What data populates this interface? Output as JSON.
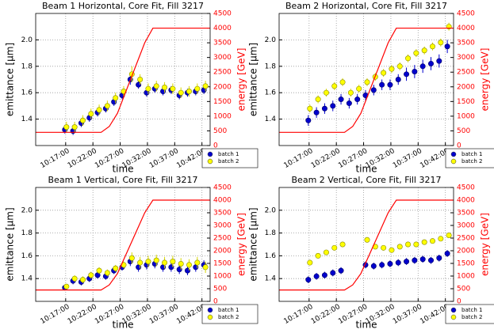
{
  "chart_data": [
    {
      "type": "errorbar",
      "title": "Beam 1 Horizontal, Core Fit, Fill 3217",
      "xlabel": "time",
      "ylabel": "emittance [μm]",
      "y2label": "energy [GeV]",
      "x": [
        17,
        18.5,
        20,
        21.5,
        23,
        24.5,
        26,
        27.5,
        29,
        30.5,
        32,
        33.5,
        35,
        36.5,
        38,
        39.5,
        41,
        42.5
      ],
      "xlim": [
        11.5,
        43.5
      ],
      "xticks": [
        {
          "value": 17,
          "label": "10:17:00"
        },
        {
          "value": 22,
          "label": "10:22:00"
        },
        {
          "value": 27,
          "label": "10:27:00"
        },
        {
          "value": 32,
          "label": "10:32:00"
        },
        {
          "value": 37,
          "label": "10:37:00"
        },
        {
          "value": 42,
          "label": "10:42:00"
        }
      ],
      "ylim": [
        1.2,
        2.2
      ],
      "yticks": [
        1.4,
        1.6,
        1.8,
        {
          "value": 2,
          "label": "2.0"
        }
      ],
      "y2lim": [
        0,
        4500
      ],
      "y2ticks": [
        0,
        500,
        1000,
        1500,
        2000,
        2500,
        3000,
        3500,
        4000,
        4500
      ],
      "grid": true,
      "legend": "lower right",
      "series": [
        {
          "name": "batch 1",
          "color": "#0000cc",
          "values": [
            1.32,
            1.31,
            1.37,
            1.41,
            1.45,
            1.48,
            1.53,
            1.58,
            1.7,
            1.66,
            1.6,
            1.63,
            1.61,
            1.62,
            1.58,
            1.6,
            1.61,
            1.62
          ],
          "errors": [
            0.03,
            0.03,
            0.03,
            0.03,
            0.03,
            0.03,
            0.03,
            0.03,
            0.04,
            0.03,
            0.03,
            0.03,
            0.03,
            0.03,
            0.03,
            0.03,
            0.03,
            0.03
          ]
        },
        {
          "name": "batch 2",
          "color": "#ffff00",
          "values": [
            1.34,
            1.34,
            1.39,
            1.44,
            1.47,
            1.5,
            1.56,
            1.61,
            1.74,
            1.7,
            1.63,
            1.65,
            1.64,
            1.63,
            1.6,
            1.61,
            1.63,
            1.65
          ],
          "errors": [
            0.04,
            0.04,
            0.04,
            0.04,
            0.04,
            0.04,
            0.04,
            0.04,
            0.06,
            0.04,
            0.04,
            0.04,
            0.04,
            0.04,
            0.04,
            0.04,
            0.04,
            0.04
          ]
        },
        {
          "color": "#ff0000",
          "axis": "y2",
          "x": [
            11.5,
            23.5,
            25,
            26.5,
            31.5,
            33,
            43.5
          ],
          "values": [
            450,
            450,
            650,
            1100,
            3500,
            4000,
            4000
          ]
        }
      ]
    },
    {
      "type": "errorbar",
      "title": "Beam 2 Horizontal, Core Fit, Fill 3217",
      "xlabel": "time",
      "ylabel": "emittance [μm]",
      "y2label": "energy [GeV]",
      "x": [
        17,
        18.5,
        20,
        21.5,
        23,
        24.5,
        26,
        27.5,
        29,
        30.5,
        32,
        33.5,
        35,
        36.5,
        38,
        39.5,
        41,
        42.5
      ],
      "xlim": [
        11.5,
        43.5
      ],
      "xticks": [
        {
          "value": 17,
          "label": "10:17:00"
        },
        {
          "value": 22,
          "label": "10:22:00"
        },
        {
          "value": 27,
          "label": "10:27:00"
        },
        {
          "value": 32,
          "label": "10:32:00"
        },
        {
          "value": 37,
          "label": "10:37:00"
        },
        {
          "value": 42,
          "label": "10:42:00"
        }
      ],
      "ylim": [
        1.2,
        2.2
      ],
      "yticks": [
        1.4,
        1.6,
        1.8,
        {
          "value": 2,
          "label": "2.0"
        }
      ],
      "y2lim": [
        0,
        4500
      ],
      "y2ticks": [
        0,
        500,
        1000,
        1500,
        2000,
        2500,
        3000,
        3500,
        4000,
        4500
      ],
      "grid": true,
      "legend": "lower right",
      "series": [
        {
          "name": "batch 1",
          "color": "#0000cc",
          "values": [
            1.39,
            1.45,
            1.48,
            1.5,
            1.55,
            1.52,
            1.55,
            1.58,
            1.62,
            1.66,
            1.66,
            1.7,
            1.74,
            1.76,
            1.8,
            1.82,
            1.84,
            1.95
          ],
          "errors": [
            0.04,
            0.04,
            0.04,
            0.04,
            0.04,
            0.04,
            0.04,
            0.04,
            0.04,
            0.04,
            0.04,
            0.04,
            0.05,
            0.05,
            0.05,
            0.05,
            0.05,
            0.05
          ]
        },
        {
          "name": "batch 2",
          "color": "#ffff00",
          "values": [
            1.48,
            1.55,
            1.6,
            1.65,
            1.68,
            1.6,
            1.63,
            1.68,
            1.72,
            1.75,
            1.78,
            1.8,
            1.86,
            1.9,
            1.92,
            1.95,
            1.98,
            2.1
          ],
          "errors": [
            0.03,
            0.03,
            0.03,
            0.03,
            0.03,
            0.03,
            0.03,
            0.03,
            0.03,
            0.03,
            0.03,
            0.03,
            0.03,
            0.03,
            0.03,
            0.03,
            0.03,
            0.03
          ]
        },
        {
          "color": "#ff0000",
          "axis": "y2",
          "x": [
            11.5,
            23.5,
            25,
            26.5,
            31.5,
            33,
            43.5
          ],
          "values": [
            450,
            450,
            650,
            1100,
            3500,
            4000,
            4000
          ]
        }
      ]
    },
    {
      "type": "errorbar",
      "title": "Beam 1 Vertical, Core Fit, Fill 3217",
      "xlabel": "time",
      "ylabel": "emittance [μm]",
      "y2label": "energy [GeV]",
      "x": [
        17,
        18.5,
        20,
        21.5,
        23,
        24.5,
        26,
        27.5,
        29,
        30.5,
        32,
        33.5,
        35,
        36.5,
        38,
        39.5,
        41,
        42.5
      ],
      "xlim": [
        11.5,
        43.5
      ],
      "xticks": [
        {
          "value": 17,
          "label": "10:17:00"
        },
        {
          "value": 22,
          "label": "10:22:00"
        },
        {
          "value": 27,
          "label": "10:27:00"
        },
        {
          "value": 32,
          "label": "10:32:00"
        },
        {
          "value": 37,
          "label": "10:37:00"
        },
        {
          "value": 42,
          "label": "10:42:00"
        }
      ],
      "ylim": [
        1.2,
        2.2
      ],
      "yticks": [
        1.4,
        1.6,
        1.8,
        {
          "value": 2,
          "label": "2.0"
        }
      ],
      "y2lim": [
        0,
        4500
      ],
      "y2ticks": [
        0,
        500,
        1000,
        1500,
        2000,
        2500,
        3000,
        3500,
        4000,
        4500
      ],
      "grid": true,
      "legend": "lower right",
      "series": [
        {
          "name": "batch 1",
          "color": "#0000cc",
          "values": [
            1.32,
            1.38,
            1.37,
            1.4,
            1.43,
            1.42,
            1.47,
            1.5,
            1.55,
            1.5,
            1.52,
            1.53,
            1.5,
            1.5,
            1.48,
            1.47,
            1.5,
            1.52
          ],
          "errors": [
            0.02,
            0.03,
            0.03,
            0.03,
            0.03,
            0.03,
            0.03,
            0.03,
            0.04,
            0.04,
            0.04,
            0.04,
            0.04,
            0.04,
            0.04,
            0.04,
            0.04,
            0.04
          ]
        },
        {
          "name": "batch 2",
          "color": "#ffff00",
          "values": [
            1.33,
            1.4,
            1.39,
            1.43,
            1.47,
            1.45,
            1.49,
            1.52,
            1.58,
            1.54,
            1.55,
            1.56,
            1.54,
            1.55,
            1.53,
            1.52,
            1.54,
            1.5
          ],
          "errors": [
            0.02,
            0.03,
            0.03,
            0.03,
            0.03,
            0.03,
            0.03,
            0.03,
            0.05,
            0.05,
            0.05,
            0.05,
            0.05,
            0.05,
            0.05,
            0.05,
            0.05,
            0.05
          ]
        },
        {
          "color": "#ff0000",
          "axis": "y2",
          "x": [
            11.5,
            23.5,
            25,
            26.5,
            31.5,
            33,
            43.5
          ],
          "values": [
            450,
            450,
            650,
            1100,
            3500,
            4000,
            4000
          ]
        }
      ]
    },
    {
      "type": "errorbar",
      "title": "Beam 2 Vertical, Core Fit, Fill 3217",
      "xlabel": "time",
      "ylabel": "emittance [μm]",
      "y2label": "energy [GeV]",
      "x": [
        17,
        18.5,
        20,
        21.5,
        23,
        24.5,
        26,
        27.5,
        29,
        30.5,
        32,
        33.5,
        35,
        36.5,
        38,
        39.5,
        41,
        42.5
      ],
      "xlim": [
        11.5,
        43.5
      ],
      "xticks": [
        {
          "value": 17,
          "label": "10:17:00"
        },
        {
          "value": 22,
          "label": "10:22:00"
        },
        {
          "value": 27,
          "label": "10:27:00"
        },
        {
          "value": 32,
          "label": "10:32:00"
        },
        {
          "value": 37,
          "label": "10:37:00"
        },
        {
          "value": 42,
          "label": "10:42:00"
        }
      ],
      "ylim": [
        1.2,
        2.2
      ],
      "yticks": [
        1.4,
        1.6,
        1.8,
        {
          "value": 2,
          "label": "2.0"
        }
      ],
      "y2lim": [
        0,
        4500
      ],
      "y2ticks": [
        0,
        500,
        1000,
        1500,
        2000,
        2500,
        3000,
        3500,
        4000,
        4500
      ],
      "grid": true,
      "legend": "lower right",
      "series": [
        {
          "name": "batch 1",
          "color": "#0000cc",
          "values": [
            1.39,
            1.42,
            1.43,
            1.45,
            1.47,
            null,
            null,
            1.52,
            1.51,
            1.52,
            1.53,
            1.54,
            1.55,
            1.56,
            1.57,
            1.56,
            1.58,
            1.62
          ],
          "errors": [
            0.03,
            0.03,
            0.03,
            0.03,
            0.03,
            null,
            null,
            0.03,
            0.03,
            0.03,
            0.03,
            0.03,
            0.03,
            0.03,
            0.03,
            0.03,
            0.03,
            0.03
          ]
        },
        {
          "name": "batch 2",
          "color": "#ffff00",
          "values": [
            1.54,
            1.6,
            1.63,
            1.67,
            1.7,
            null,
            null,
            1.74,
            1.68,
            1.67,
            1.65,
            1.68,
            1.7,
            1.7,
            1.72,
            1.73,
            1.75,
            1.78
          ],
          "errors": [
            0.02,
            0.02,
            0.02,
            0.02,
            0.02,
            null,
            null,
            0.02,
            0.02,
            0.02,
            0.02,
            0.02,
            0.02,
            0.02,
            0.02,
            0.02,
            0.02,
            0.02
          ]
        },
        {
          "color": "#ff0000",
          "axis": "y2",
          "x": [
            11.5,
            23.5,
            25,
            26.5,
            31.5,
            33,
            43.5
          ],
          "values": [
            450,
            450,
            650,
            1100,
            3500,
            4000,
            4000
          ]
        }
      ]
    }
  ]
}
